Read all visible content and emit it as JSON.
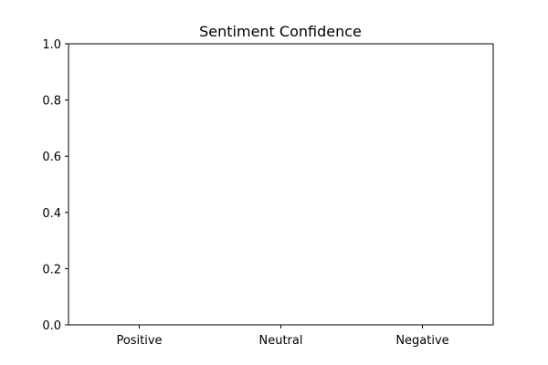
{
  "chart_data": {
    "type": "bar",
    "title": "Sentiment Confidence",
    "xlabel": "",
    "ylabel": "",
    "categories": [
      "Positive",
      "Neutral",
      "Negative"
    ],
    "values": [
      0,
      0,
      0
    ],
    "ylim": [
      0.0,
      1.0
    ],
    "yticks": [
      "0.0",
      "0.2",
      "0.4",
      "0.6",
      "0.8",
      "1.0"
    ],
    "grid": false,
    "colors": {
      "axis": "#000000",
      "background": "#ffffff"
    }
  }
}
